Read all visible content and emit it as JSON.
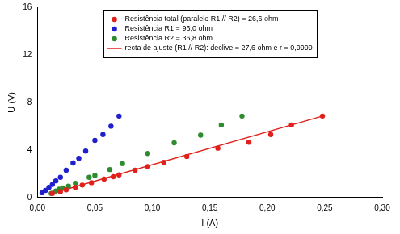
{
  "chart_data": {
    "type": "scatter",
    "x_label": "I (A)",
    "y_label": "U (V)",
    "xlim": [
      0,
      0.3
    ],
    "xticks": [
      {
        "value": 0,
        "label": "0,00"
      },
      {
        "value": 0.05,
        "label": "0,05"
      },
      {
        "value": 0.1,
        "label": "0,10"
      },
      {
        "value": 0.15,
        "label": "0,15"
      },
      {
        "value": 0.2,
        "label": "0,20"
      },
      {
        "value": 0.25,
        "label": "0,25"
      },
      {
        "value": 0.3,
        "label": "0,30"
      }
    ],
    "ylim": [
      0,
      16
    ],
    "yticks": [
      0,
      4,
      8,
      12,
      16
    ],
    "grid": false,
    "legend": "top",
    "series": [
      {
        "name": "Resistência total (paralelo R1 // R2) = 26,6 ohm",
        "color": "#e0201b",
        "marker": "circle",
        "x": [
          0.013,
          0.02,
          0.025,
          0.033,
          0.039,
          0.047,
          0.058,
          0.066,
          0.071,
          0.085,
          0.096,
          0.11,
          0.13,
          0.157,
          0.184,
          0.203,
          0.221,
          0.248
        ],
        "values": [
          0.35,
          0.5,
          0.65,
          0.85,
          1.05,
          1.25,
          1.55,
          1.75,
          1.9,
          2.3,
          2.6,
          2.95,
          3.45,
          4.15,
          4.65,
          5.3,
          6.1,
          6.85
        ]
      },
      {
        "name": "Resistência R1 = 96,0 ohm",
        "color": "#1f1fcc",
        "marker": "circle",
        "x": [
          0.004,
          0.007,
          0.01,
          0.013,
          0.016,
          0.02,
          0.025,
          0.031,
          0.036,
          0.042,
          0.05,
          0.057,
          0.064,
          0.071
        ],
        "values": [
          0.4,
          0.6,
          0.85,
          1.1,
          1.4,
          1.7,
          2.3,
          2.9,
          3.3,
          3.9,
          4.8,
          5.3,
          6.0,
          6.85
        ]
      },
      {
        "name": "Resistência R2 = 36,8 ohm",
        "color": "#2e8b2e",
        "marker": "circle",
        "x": [
          0.012,
          0.016,
          0.019,
          0.022,
          0.027,
          0.033,
          0.045,
          0.05,
          0.063,
          0.074,
          0.096,
          0.119,
          0.142,
          0.16,
          0.178
        ],
        "values": [
          0.35,
          0.55,
          0.7,
          0.8,
          0.95,
          1.2,
          1.7,
          1.85,
          2.35,
          2.85,
          3.7,
          4.6,
          5.25,
          6.1,
          6.85
        ]
      },
      {
        "name": "recta de ajuste (R1 // R2): declive = 27,6 ohm e r = 0,9999",
        "color": "#e0201b",
        "type": "line",
        "marker": "none",
        "line_style": "solid",
        "x": [
          0.01,
          0.248
        ],
        "values": [
          0.28,
          6.85
        ]
      }
    ]
  }
}
